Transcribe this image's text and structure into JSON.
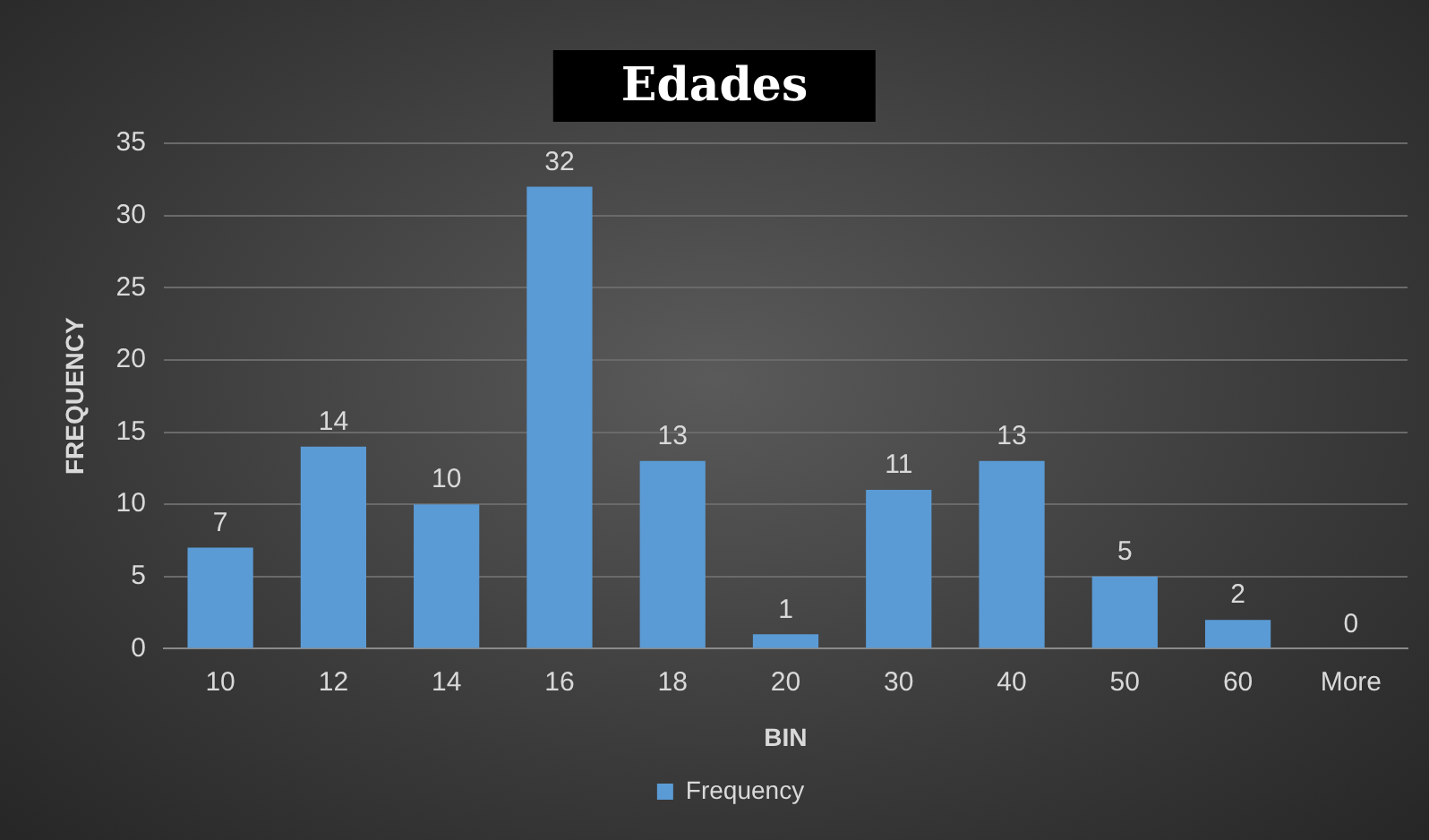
{
  "chart_data": {
    "type": "bar",
    "title": "Edades",
    "xlabel": "BIN",
    "ylabel": "FREQUENCY",
    "categories": [
      "10",
      "12",
      "14",
      "16",
      "18",
      "20",
      "30",
      "40",
      "50",
      "60",
      "More"
    ],
    "series": [
      {
        "name": "Frequency",
        "color": "#5b9bd5",
        "values": [
          7,
          14,
          10,
          32,
          13,
          1,
          11,
          13,
          5,
          2,
          0
        ]
      }
    ],
    "ylim": [
      0,
      35
    ],
    "yticks": [
      0,
      5,
      10,
      15,
      20,
      25,
      30,
      35
    ],
    "grid": "y",
    "legend": "bottom",
    "data_labels": true
  }
}
